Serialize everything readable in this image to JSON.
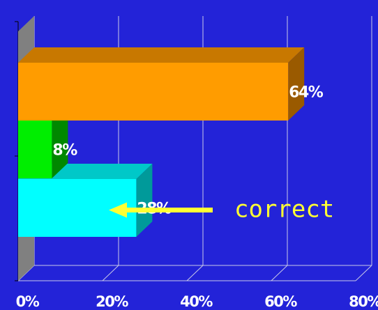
{
  "chart_data": {
    "type": "bar",
    "orientation": "horizontal",
    "three_d": true,
    "categories": [
      "",
      "",
      ""
    ],
    "values": [
      64,
      8,
      28
    ],
    "data_labels": [
      "64%",
      "8%",
      "28%"
    ],
    "xlim": [
      0,
      80
    ],
    "xticks": [
      0,
      20,
      40,
      60,
      80
    ],
    "xtick_labels": [
      "0%",
      "20%",
      "40%",
      "60%",
      "80%"
    ],
    "grid": true,
    "legend": "none",
    "annotation": {
      "text": "correct",
      "points_to_bar": 2
    }
  },
  "colors": {
    "background": "#2323d8",
    "bar_front": [
      "#ff9c00",
      "#00ee00",
      "#00ffff"
    ],
    "bar_top": [
      "#c87800",
      "#00aa00",
      "#00c8c8"
    ],
    "bar_side": [
      "#9a5a00",
      "#008800",
      "#009a9a"
    ],
    "wall": "#808080",
    "grid": "#c8c8e8",
    "annotation": "#ffff33"
  }
}
